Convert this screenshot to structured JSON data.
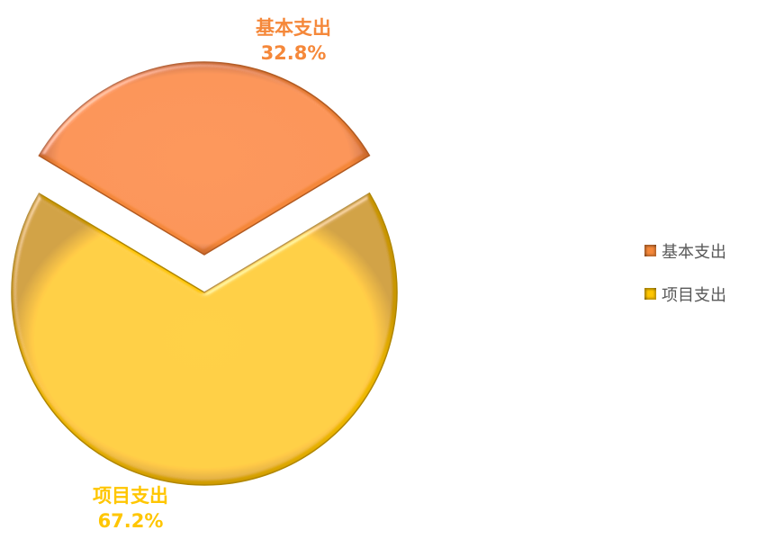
{
  "chart_data": {
    "type": "pie",
    "title": "",
    "slices": [
      {
        "name": "基本支出",
        "value": 32.8,
        "label": "32.8%",
        "color": "#F5883A",
        "edge": "#B25A20"
      },
      {
        "name": "项目支出",
        "value": 67.2,
        "label": "67.2%",
        "color": "#FFC600",
        "edge": "#B08600"
      }
    ],
    "exploded_slice": "基本支出",
    "legend_position": "right",
    "legend": [
      "基本支出",
      "项目支出"
    ]
  }
}
